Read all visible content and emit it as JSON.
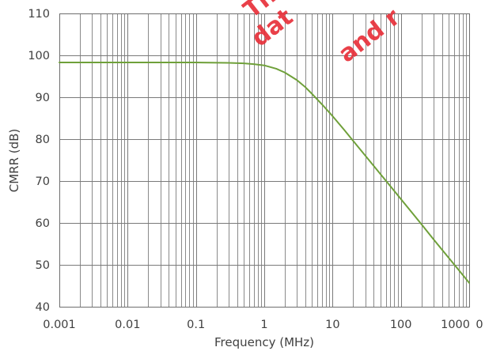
{
  "chart_data": {
    "type": "line",
    "title": "",
    "xlabel": "Frequency (MHz)",
    "ylabel": "CMRR (dB)",
    "x_scale": "log",
    "xlim": [
      0.001,
      1000
    ],
    "ylim": [
      40,
      110
    ],
    "x_ticks": [
      0.001,
      0.01,
      0.1,
      1,
      10,
      100,
      1000
    ],
    "x_tick_labels": [
      "0.001",
      "0.01",
      "0.1",
      "1",
      "10",
      "100",
      "1000"
    ],
    "x_edge_text": "0",
    "y_ticks": [
      40,
      50,
      60,
      70,
      80,
      90,
      100,
      110
    ],
    "y_tick_labels": [
      "40",
      "50",
      "60",
      "70",
      "80",
      "90",
      "100",
      "110"
    ],
    "grid": true,
    "minor_grid_x": true,
    "legend": "none",
    "series": [
      {
        "color": "#6fa03a",
        "x": [
          0.001,
          0.01,
          0.1,
          0.3,
          0.5,
          0.7,
          1,
          1.5,
          2,
          3,
          4,
          5,
          7,
          10,
          15,
          20,
          30,
          50,
          70,
          100,
          150,
          200,
          300,
          500,
          700,
          1000
        ],
        "y": [
          98.3,
          98.3,
          98.3,
          98.2,
          98.1,
          97.9,
          97.6,
          96.8,
          95.9,
          94.1,
          92.4,
          90.8,
          88.3,
          85.5,
          82.1,
          79.6,
          76.1,
          71.7,
          68.8,
          65.7,
          62.2,
          59.7,
          56.1,
          51.7,
          48.8,
          45.7
        ]
      }
    ]
  },
  "watermark": {
    "color": "#e8303a",
    "fragments": [
      "Th",
      "dat",
      "and r"
    ]
  }
}
